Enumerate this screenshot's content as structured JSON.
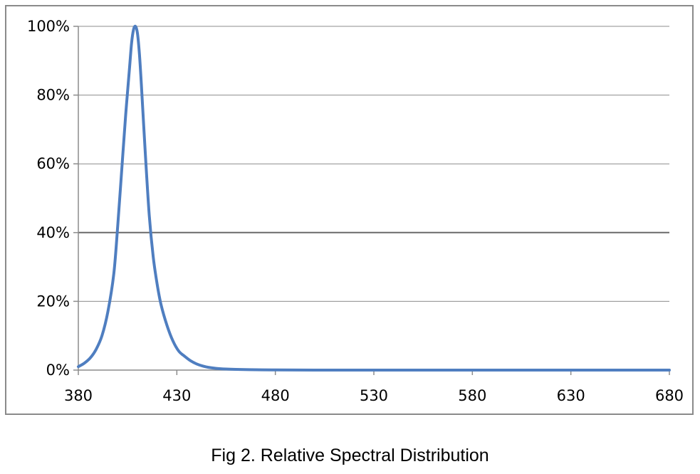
{
  "caption": "Fig 2. Relative Spectral Distribution",
  "chart_data": {
    "type": "line",
    "title": "",
    "xlabel": "",
    "ylabel": "",
    "xlim": [
      380,
      680
    ],
    "ylim": [
      0,
      100
    ],
    "x_ticks": [
      "380",
      "430",
      "480",
      "530",
      "580",
      "630",
      "680"
    ],
    "y_ticks": [
      "0%",
      "20%",
      "40%",
      "60%",
      "80%",
      "100%"
    ],
    "y_tick_values": [
      0,
      20,
      40,
      60,
      80,
      100
    ],
    "x_tick_values": [
      380,
      430,
      480,
      530,
      580,
      630,
      680
    ],
    "grid": "horizontal",
    "legend": "none",
    "colors": {
      "series": "#4f7ec0",
      "grid": "#8c8c8c",
      "axis": "#8c8c8c"
    },
    "series": [
      {
        "x": [
          380,
          383,
          386,
          389,
          392,
          395,
          398,
          400,
          402,
          404,
          406,
          407,
          408,
          409,
          410,
          411,
          412,
          414,
          416,
          418,
          420,
          422,
          425,
          428,
          431,
          434,
          437,
          440,
          443,
          446,
          450,
          455,
          460,
          470,
          480,
          500,
          530,
          580,
          630,
          680
        ],
        "y": [
          1,
          2,
          3.5,
          6,
          10,
          17,
          28,
          42,
          58,
          74,
          88,
          95,
          99,
          100,
          98,
          92,
          83,
          63,
          45,
          33,
          25,
          19,
          13,
          8.5,
          5.5,
          4,
          2.7,
          1.8,
          1.2,
          0.8,
          0.5,
          0.3,
          0.2,
          0.1,
          0.05,
          0,
          0,
          0,
          0,
          0
        ]
      }
    ]
  }
}
